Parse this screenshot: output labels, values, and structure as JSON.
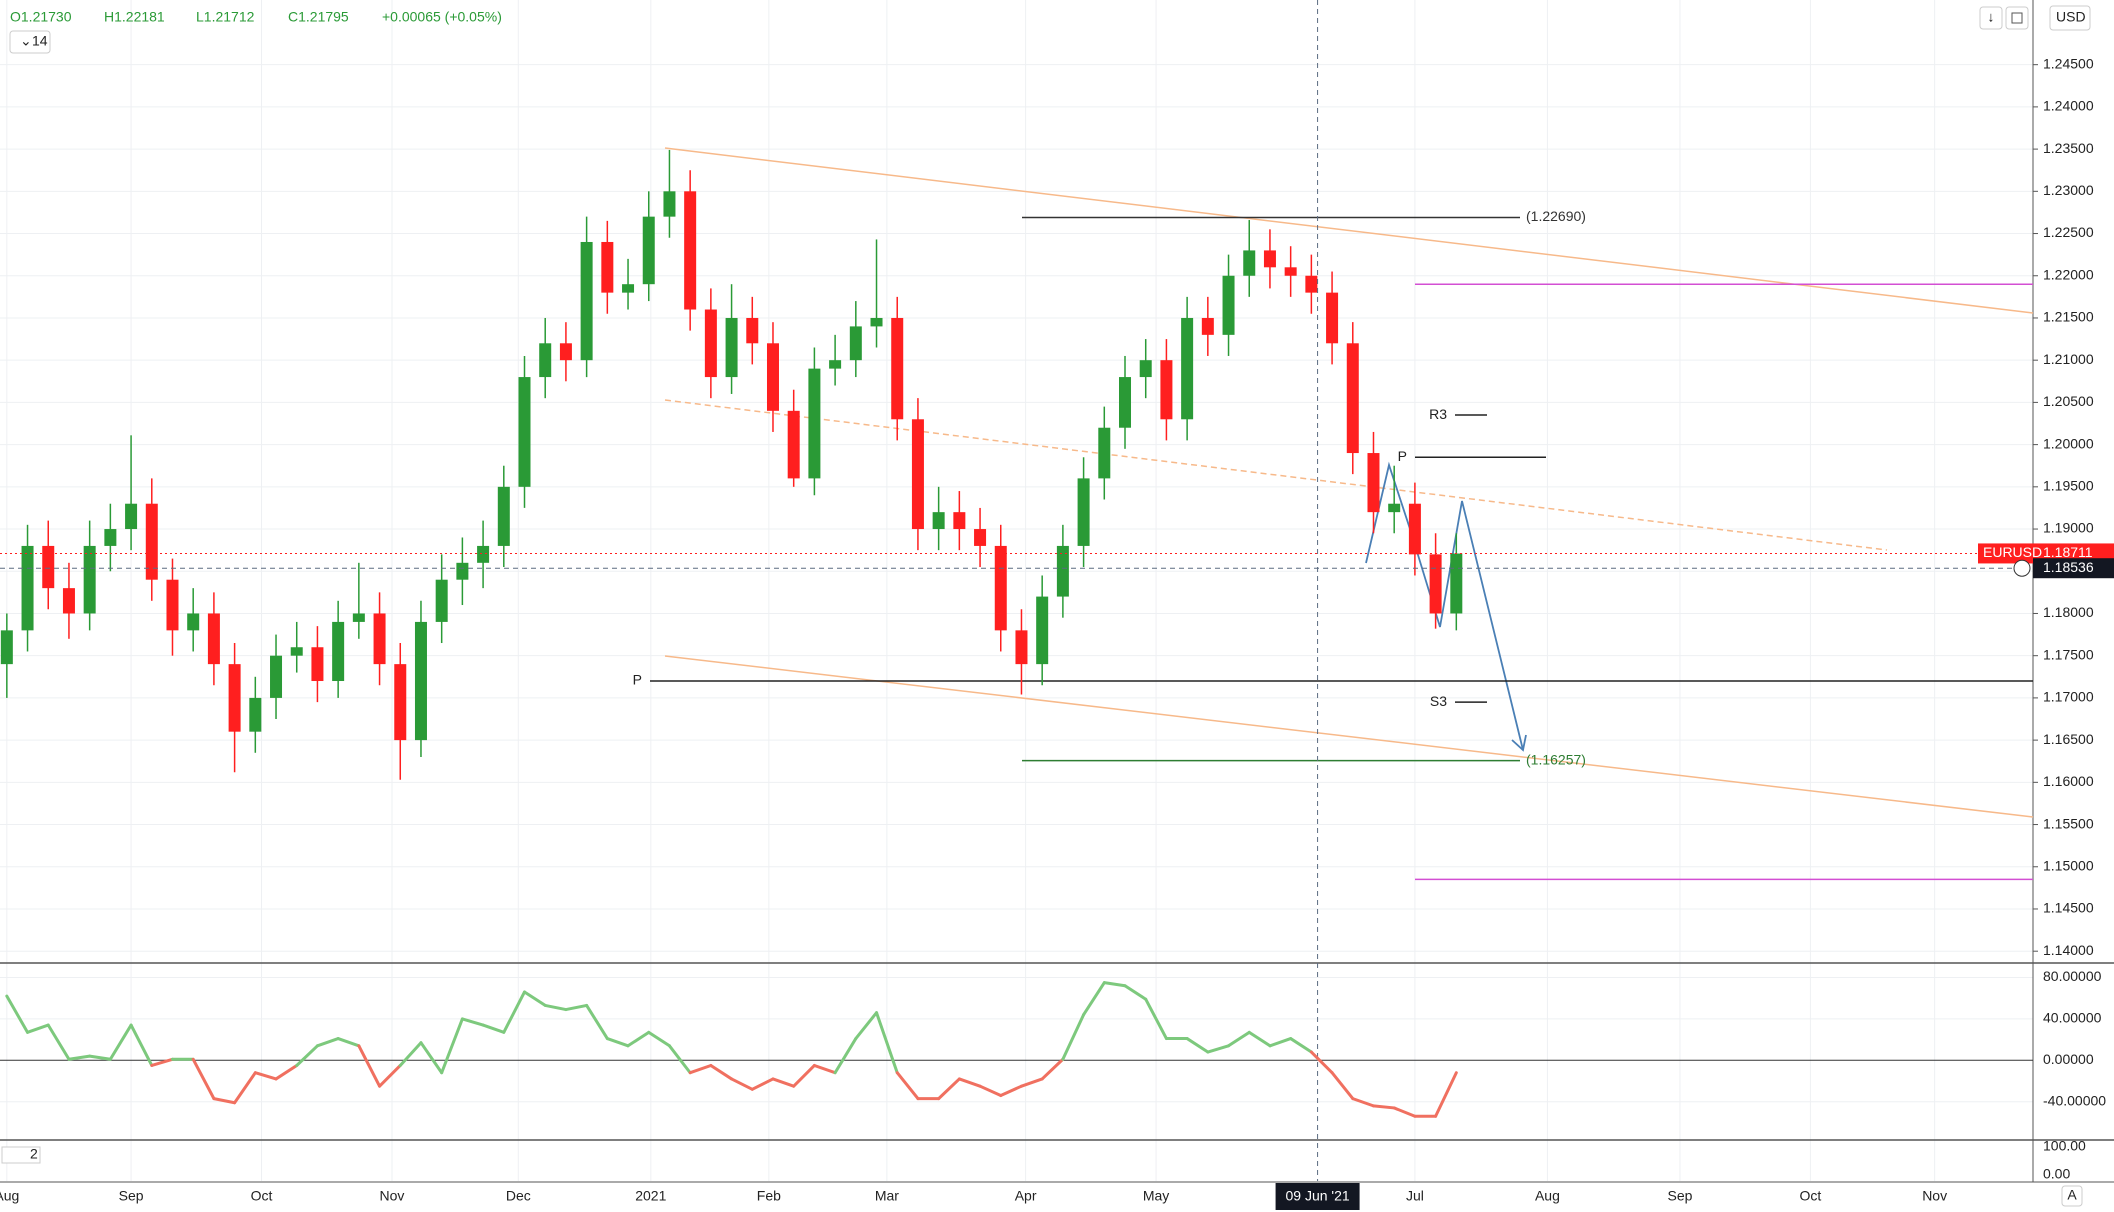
{
  "header": {
    "open": "O1.21730",
    "high": "H1.22181",
    "low": "L1.21712",
    "close": "C1.21795",
    "change": "+0.00065 (+0.05%)",
    "indicator": "14"
  },
  "toolbar": {
    "currency": "USD",
    "auto": "A"
  },
  "chart_data": {
    "type": "candlestick",
    "up_color": "#2a9a36",
    "down_color": "#ff1f1f",
    "xlim": [
      -0.33,
      97.85
    ],
    "xticks": [
      {
        "value": 0,
        "label": "Aug"
      },
      {
        "value": 6,
        "label": "Sep"
      },
      {
        "value": 12.3,
        "label": "Oct"
      },
      {
        "value": 18.6,
        "label": "Nov"
      },
      {
        "value": 24.7,
        "label": "Dec"
      },
      {
        "value": 31.1,
        "label": "2021"
      },
      {
        "value": 36.8,
        "label": "Feb"
      },
      {
        "value": 42.5,
        "label": "Mar"
      },
      {
        "value": 49.2,
        "label": "Apr"
      },
      {
        "value": 55.5,
        "label": "May"
      },
      {
        "value": 68,
        "label": "Jul"
      },
      {
        "value": 74.4,
        "label": "Aug"
      },
      {
        "value": 80.8,
        "label": "Sep"
      },
      {
        "value": 87.1,
        "label": "Oct"
      },
      {
        "value": 93.1,
        "label": "Nov"
      }
    ],
    "ylim": [
      1.13872,
      1.25266
    ],
    "yticks": [
      {
        "value": 1.14,
        "label": "1.14000"
      },
      {
        "value": 1.145,
        "label": "1.14500"
      },
      {
        "value": 1.15,
        "label": "1.15000"
      },
      {
        "value": 1.155,
        "label": "1.15500"
      },
      {
        "value": 1.16,
        "label": "1.16000"
      },
      {
        "value": 1.165,
        "label": "1.16500"
      },
      {
        "value": 1.17,
        "label": "1.17000"
      },
      {
        "value": 1.175,
        "label": "1.17500"
      },
      {
        "value": 1.18,
        "label": "1.18000"
      },
      {
        "value": 1.185,
        "label": "1.18500"
      },
      {
        "value": 1.19,
        "label": "1.19000"
      },
      {
        "value": 1.195,
        "label": "1.19500"
      },
      {
        "value": 1.2,
        "label": "1.20000"
      },
      {
        "value": 1.205,
        "label": "1.20500"
      },
      {
        "value": 1.21,
        "label": "1.21000"
      },
      {
        "value": 1.215,
        "label": "1.21500"
      },
      {
        "value": 1.22,
        "label": "1.22000"
      },
      {
        "value": 1.225,
        "label": "1.22500"
      },
      {
        "value": 1.23,
        "label": "1.23000"
      },
      {
        "value": 1.235,
        "label": "1.23500"
      },
      {
        "value": 1.24,
        "label": "1.24000"
      },
      {
        "value": 1.245,
        "label": "1.24500"
      }
    ],
    "grid": true,
    "candles": [
      [
        1.174,
        1.18,
        1.17,
        1.178
      ],
      [
        1.178,
        1.1905,
        1.1755,
        1.188
      ],
      [
        1.188,
        1.191,
        1.1805,
        1.183
      ],
      [
        1.183,
        1.186,
        1.177,
        1.18
      ],
      [
        1.18,
        1.191,
        1.178,
        1.188
      ],
      [
        1.188,
        1.193,
        1.185,
        1.19
      ],
      [
        1.19,
        1.2011,
        1.1875,
        1.193
      ],
      [
        1.193,
        1.196,
        1.1815,
        1.184
      ],
      [
        1.184,
        1.1865,
        1.175,
        1.178
      ],
      [
        1.178,
        1.183,
        1.1755,
        1.18
      ],
      [
        1.18,
        1.1825,
        1.1715,
        1.174
      ],
      [
        1.174,
        1.1765,
        1.1612,
        1.166
      ],
      [
        1.166,
        1.1725,
        1.1635,
        1.17
      ],
      [
        1.17,
        1.1775,
        1.1675,
        1.175
      ],
      [
        1.175,
        1.179,
        1.173,
        1.176
      ],
      [
        1.176,
        1.1785,
        1.1695,
        1.172
      ],
      [
        1.172,
        1.1815,
        1.17,
        1.179
      ],
      [
        1.179,
        1.186,
        1.177,
        1.18
      ],
      [
        1.18,
        1.1825,
        1.1715,
        1.174
      ],
      [
        1.174,
        1.1765,
        1.1603,
        1.165
      ],
      [
        1.165,
        1.1815,
        1.163,
        1.179
      ],
      [
        1.179,
        1.187,
        1.1765,
        1.184
      ],
      [
        1.184,
        1.189,
        1.181,
        1.186
      ],
      [
        1.186,
        1.191,
        1.183,
        1.188
      ],
      [
        1.188,
        1.1975,
        1.1855,
        1.195
      ],
      [
        1.195,
        1.2105,
        1.1925,
        1.208
      ],
      [
        1.208,
        1.215,
        1.2055,
        1.212
      ],
      [
        1.212,
        1.2145,
        1.2075,
        1.21
      ],
      [
        1.21,
        1.227,
        1.208,
        1.224
      ],
      [
        1.224,
        1.2265,
        1.2155,
        1.218
      ],
      [
        1.218,
        1.222,
        1.216,
        1.219
      ],
      [
        1.219,
        1.23,
        1.217,
        1.227
      ],
      [
        1.227,
        1.2349,
        1.2245,
        1.23
      ],
      [
        1.23,
        1.2325,
        1.2135,
        1.216
      ],
      [
        1.216,
        1.2185,
        1.2055,
        1.208
      ],
      [
        1.208,
        1.219,
        1.206,
        1.215
      ],
      [
        1.215,
        1.2175,
        1.2095,
        1.212
      ],
      [
        1.212,
        1.2145,
        1.2015,
        1.204
      ],
      [
        1.204,
        1.2065,
        1.195,
        1.196
      ],
      [
        1.196,
        1.2115,
        1.194,
        1.209
      ],
      [
        1.209,
        1.213,
        1.207,
        1.21
      ],
      [
        1.21,
        1.217,
        1.208,
        1.214
      ],
      [
        1.214,
        1.2243,
        1.2115,
        1.215
      ],
      [
        1.215,
        1.2175,
        1.2005,
        1.203
      ],
      [
        1.203,
        1.2055,
        1.1875,
        1.19
      ],
      [
        1.19,
        1.195,
        1.1875,
        1.192
      ],
      [
        1.192,
        1.1945,
        1.1875,
        1.19
      ],
      [
        1.19,
        1.1925,
        1.1855,
        1.188
      ],
      [
        1.188,
        1.1905,
        1.1755,
        1.178
      ],
      [
        1.178,
        1.1805,
        1.1704,
        1.174
      ],
      [
        1.174,
        1.1845,
        1.1715,
        1.182
      ],
      [
        1.182,
        1.1905,
        1.1795,
        1.188
      ],
      [
        1.188,
        1.1985,
        1.1855,
        1.196
      ],
      [
        1.196,
        1.2045,
        1.1935,
        1.202
      ],
      [
        1.202,
        1.2105,
        1.1995,
        1.208
      ],
      [
        1.208,
        1.2125,
        1.2055,
        1.21
      ],
      [
        1.21,
        1.2125,
        1.2005,
        1.203
      ],
      [
        1.203,
        1.2175,
        1.2005,
        1.215
      ],
      [
        1.215,
        1.2175,
        1.2105,
        1.213
      ],
      [
        1.213,
        1.2225,
        1.2105,
        1.22
      ],
      [
        1.22,
        1.2266,
        1.2175,
        1.223
      ],
      [
        1.223,
        1.2255,
        1.2185,
        1.221
      ],
      [
        1.221,
        1.2235,
        1.2175,
        1.22
      ],
      [
        1.22,
        1.2225,
        1.2155,
        1.218
      ],
      [
        1.218,
        1.2205,
        1.2095,
        1.212
      ],
      [
        1.212,
        1.2145,
        1.1965,
        1.199
      ],
      [
        1.199,
        1.2015,
        1.1895,
        1.192
      ],
      [
        1.192,
        1.1975,
        1.1895,
        1.193
      ],
      [
        1.193,
        1.1955,
        1.1845,
        1.187
      ],
      [
        1.187,
        1.1895,
        1.1782,
        1.18
      ],
      [
        1.18,
        1.1895,
        1.178,
        1.1871
      ]
    ],
    "levels": [
      {
        "label": "(1.22690)",
        "value": 1.2269,
        "color": "#333333"
      },
      {
        "label": "(1.16257)",
        "value": 1.16257,
        "color": "#2e7d32"
      },
      {
        "label": "P",
        "value": 1.172,
        "color": "#222222"
      },
      {
        "label": "R3",
        "value": 1.2035,
        "color": "#222222"
      },
      {
        "label": "P",
        "value": 1.1985,
        "color": "#222222"
      },
      {
        "label": "S3",
        "value": 1.1695,
        "color": "#222222"
      },
      {
        "value": 1.219,
        "color": "#d34fd3"
      },
      {
        "value": 1.1485,
        "color": "#d34fd3"
      }
    ],
    "last_price": {
      "symbol": "EURUSD",
      "value": 1.18711,
      "label": "1.18711",
      "color": "#ff1f1f"
    },
    "crosshair": {
      "value": 1.18536,
      "label": "1.18536",
      "x": 63.3,
      "x_label": "09 Jun '21"
    },
    "oscillator": {
      "ylim": [
        -76,
        93
      ],
      "yticks": [
        {
          "value": 80,
          "label": "80.00000"
        },
        {
          "value": 40,
          "label": "40.00000"
        },
        {
          "value": 0,
          "label": "0.00000"
        },
        {
          "value": -40,
          "label": "-40.00000"
        }
      ],
      "up_color": "#7dc97d",
      "down_color": "#f07060",
      "values": [
        62,
        27,
        34,
        1,
        4,
        1,
        34,
        -5,
        1,
        1,
        -37,
        -41,
        -12,
        -18,
        -5,
        14,
        21,
        14,
        -25,
        -5,
        17,
        -12,
        40,
        34,
        27,
        66,
        53,
        49,
        53,
        21,
        14,
        27,
        14,
        -12,
        -5,
        -18,
        -28,
        -18,
        -25,
        -5,
        -12,
        21,
        46,
        -12,
        -37,
        -37,
        -18,
        -25,
        -34,
        -25,
        -18,
        1,
        44,
        75,
        72,
        59,
        21,
        21,
        8,
        14,
        27,
        14,
        21,
        8,
        -12,
        -37,
        -44,
        -46,
        -54,
        -54,
        -12
      ]
    },
    "stochastic": {
      "label": "2",
      "yticks": [
        {
          "value": 100,
          "label": "100.00"
        },
        {
          "value": 0,
          "label": "0.00"
        }
      ]
    }
  }
}
